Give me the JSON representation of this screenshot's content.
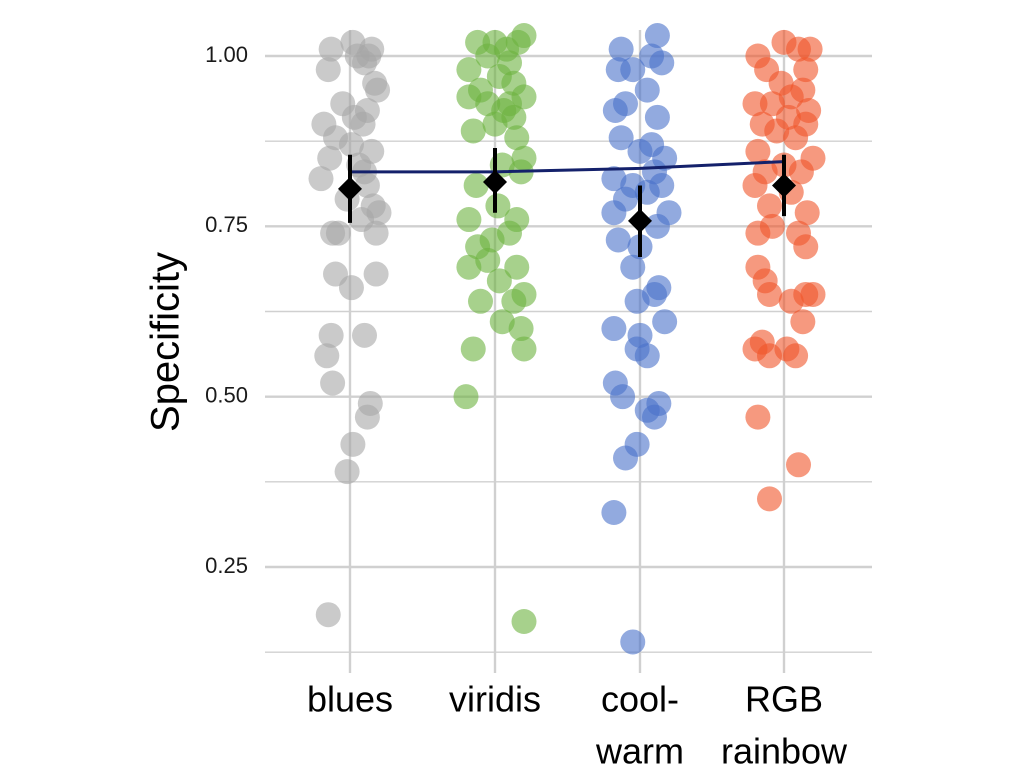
{
  "chart_data": {
    "type": "scatter",
    "ylabel": "Specificity",
    "xlabel": "",
    "ylim": [
      0.125,
      1.06
    ],
    "yticks": [
      0.25,
      0.5,
      0.75,
      1.0
    ],
    "ytick_labels": [
      "0.25",
      "0.50",
      "0.75",
      "1.00"
    ],
    "categories": [
      {
        "label_lines": [
          "blues"
        ]
      },
      {
        "label_lines": [
          "viridis"
        ]
      },
      {
        "label_lines": [
          "cool-",
          "warm"
        ]
      },
      {
        "label_lines": [
          "RGB",
          "rainbow"
        ]
      }
    ],
    "grid": true,
    "colors": {
      "points": [
        "#a6a6a6",
        "#6db33f",
        "#4a72c9",
        "#f0552a"
      ],
      "mean_marker": "#000000",
      "trend_line": "#14216b",
      "grid": "#d0d0d0"
    },
    "series": [
      {
        "points": [
          [
            -0.13,
            1.01
          ],
          [
            0.05,
            1.0
          ],
          [
            0.13,
            1.0
          ],
          [
            0.1,
            0.99
          ],
          [
            0.02,
            1.02
          ],
          [
            0.15,
            1.01
          ],
          [
            -0.15,
            0.98
          ],
          [
            0.17,
            0.96
          ],
          [
            0.19,
            0.95
          ],
          [
            -0.05,
            0.93
          ],
          [
            0.12,
            0.92
          ],
          [
            0.03,
            0.91
          ],
          [
            -0.18,
            0.9
          ],
          [
            0.09,
            0.9
          ],
          [
            -0.1,
            0.88
          ],
          [
            0.01,
            0.87
          ],
          [
            0.15,
            0.86
          ],
          [
            -0.14,
            0.85
          ],
          [
            0.06,
            0.84
          ],
          [
            0.1,
            0.83
          ],
          [
            -0.2,
            0.82
          ],
          [
            0.12,
            0.81
          ],
          [
            -0.02,
            0.79
          ],
          [
            0.16,
            0.78
          ],
          [
            0.2,
            0.77
          ],
          [
            0.08,
            0.76
          ],
          [
            -0.12,
            0.74
          ],
          [
            -0.08,
            0.74
          ],
          [
            0.18,
            0.74
          ],
          [
            -0.1,
            0.68
          ],
          [
            0.18,
            0.68
          ],
          [
            0.01,
            0.66
          ],
          [
            -0.13,
            0.59
          ],
          [
            0.1,
            0.59
          ],
          [
            -0.16,
            0.56
          ],
          [
            -0.12,
            0.52
          ],
          [
            0.14,
            0.49
          ],
          [
            0.12,
            0.47
          ],
          [
            0.02,
            0.43
          ],
          [
            -0.02,
            0.39
          ],
          [
            -0.15,
            0.18
          ]
        ]
      },
      {
        "points": [
          [
            -0.12,
            1.02
          ],
          [
            0.0,
            1.02
          ],
          [
            0.08,
            1.01
          ],
          [
            0.16,
            1.02
          ],
          [
            -0.05,
            1.0
          ],
          [
            0.1,
            0.99
          ],
          [
            -0.18,
            0.98
          ],
          [
            0.03,
            0.97
          ],
          [
            0.13,
            0.96
          ],
          [
            -0.1,
            0.95
          ],
          [
            0.2,
            0.94
          ],
          [
            -0.18,
            0.94
          ],
          [
            -0.05,
            0.93
          ],
          [
            0.1,
            0.93
          ],
          [
            0.06,
            0.92
          ],
          [
            0.13,
            0.91
          ],
          [
            0.0,
            0.9
          ],
          [
            -0.15,
            0.89
          ],
          [
            0.15,
            0.88
          ],
          [
            0.2,
            0.85
          ],
          [
            0.05,
            0.84
          ],
          [
            -0.13,
            0.81
          ],
          [
            0.18,
            0.83
          ],
          [
            0.02,
            0.78
          ],
          [
            -0.18,
            0.76
          ],
          [
            0.15,
            0.76
          ],
          [
            -0.02,
            0.73
          ],
          [
            0.1,
            0.74
          ],
          [
            -0.12,
            0.72
          ],
          [
            -0.05,
            0.7
          ],
          [
            -0.18,
            0.69
          ],
          [
            0.15,
            0.69
          ],
          [
            0.03,
            0.67
          ],
          [
            0.2,
            0.65
          ],
          [
            -0.1,
            0.64
          ],
          [
            0.13,
            0.64
          ],
          [
            0.05,
            0.61
          ],
          [
            0.18,
            0.6
          ],
          [
            0.2,
            0.57
          ],
          [
            -0.15,
            0.57
          ],
          [
            -0.2,
            0.5
          ],
          [
            0.2,
            1.03
          ],
          [
            0.2,
            0.17
          ]
        ]
      },
      {
        "points": [
          [
            -0.13,
            1.01
          ],
          [
            0.08,
            1.0
          ],
          [
            0.12,
            1.03
          ],
          [
            -0.15,
            0.98
          ],
          [
            -0.05,
            0.98
          ],
          [
            0.15,
            0.99
          ],
          [
            0.05,
            0.95
          ],
          [
            -0.1,
            0.93
          ],
          [
            -0.17,
            0.92
          ],
          [
            0.12,
            0.91
          ],
          [
            0.08,
            0.87
          ],
          [
            -0.13,
            0.88
          ],
          [
            0.0,
            0.86
          ],
          [
            0.17,
            0.85
          ],
          [
            0.1,
            0.83
          ],
          [
            -0.18,
            0.82
          ],
          [
            -0.05,
            0.81
          ],
          [
            0.15,
            0.81
          ],
          [
            0.05,
            0.8
          ],
          [
            -0.1,
            0.79
          ],
          [
            -0.18,
            0.77
          ],
          [
            0.2,
            0.77
          ],
          [
            0.12,
            0.75
          ],
          [
            -0.15,
            0.73
          ],
          [
            0.0,
            0.72
          ],
          [
            -0.05,
            0.69
          ],
          [
            0.13,
            0.66
          ],
          [
            0.1,
            0.65
          ],
          [
            -0.02,
            0.64
          ],
          [
            0.17,
            0.61
          ],
          [
            -0.18,
            0.6
          ],
          [
            0.0,
            0.59
          ],
          [
            -0.02,
            0.57
          ],
          [
            0.05,
            0.56
          ],
          [
            -0.17,
            0.52
          ],
          [
            -0.12,
            0.5
          ],
          [
            0.13,
            0.49
          ],
          [
            0.05,
            0.48
          ],
          [
            0.1,
            0.47
          ],
          [
            -0.02,
            0.43
          ],
          [
            -0.1,
            0.41
          ],
          [
            -0.18,
            0.33
          ],
          [
            -0.05,
            0.14
          ]
        ]
      },
      {
        "points": [
          [
            -0.18,
            1.0
          ],
          [
            0.0,
            1.02
          ],
          [
            0.1,
            1.01
          ],
          [
            0.18,
            1.01
          ],
          [
            -0.12,
            0.98
          ],
          [
            0.15,
            0.98
          ],
          [
            -0.02,
            0.96
          ],
          [
            0.05,
            0.94
          ],
          [
            0.13,
            0.95
          ],
          [
            -0.2,
            0.93
          ],
          [
            -0.08,
            0.93
          ],
          [
            0.17,
            0.92
          ],
          [
            0.03,
            0.91
          ],
          [
            -0.15,
            0.9
          ],
          [
            0.15,
            0.9
          ],
          [
            -0.05,
            0.89
          ],
          [
            0.08,
            0.88
          ],
          [
            -0.18,
            0.86
          ],
          [
            0.2,
            0.85
          ],
          [
            0.0,
            0.84
          ],
          [
            -0.13,
            0.83
          ],
          [
            0.12,
            0.83
          ],
          [
            -0.2,
            0.81
          ],
          [
            0.05,
            0.8
          ],
          [
            -0.1,
            0.78
          ],
          [
            0.16,
            0.77
          ],
          [
            -0.18,
            0.74
          ],
          [
            -0.08,
            0.75
          ],
          [
            0.1,
            0.74
          ],
          [
            0.15,
            0.72
          ],
          [
            -0.18,
            0.69
          ],
          [
            -0.13,
            0.67
          ],
          [
            0.05,
            0.64
          ],
          [
            -0.1,
            0.65
          ],
          [
            0.15,
            0.65
          ],
          [
            0.2,
            0.65
          ],
          [
            0.13,
            0.61
          ],
          [
            -0.15,
            0.58
          ],
          [
            -0.2,
            0.57
          ],
          [
            -0.1,
            0.56
          ],
          [
            0.02,
            0.57
          ],
          [
            0.08,
            0.56
          ],
          [
            -0.18,
            0.47
          ],
          [
            0.1,
            0.4
          ],
          [
            -0.1,
            0.35
          ]
        ]
      }
    ],
    "means": [
      {
        "mean": 0.805,
        "lower": 0.755,
        "upper": 0.855
      },
      {
        "mean": 0.815,
        "lower": 0.77,
        "upper": 0.865
      },
      {
        "mean": 0.758,
        "lower": 0.705,
        "upper": 0.81
      },
      {
        "mean": 0.81,
        "lower": 0.765,
        "upper": 0.855
      }
    ],
    "trend_line": [
      0.83,
      0.83,
      0.835,
      0.845
    ]
  }
}
